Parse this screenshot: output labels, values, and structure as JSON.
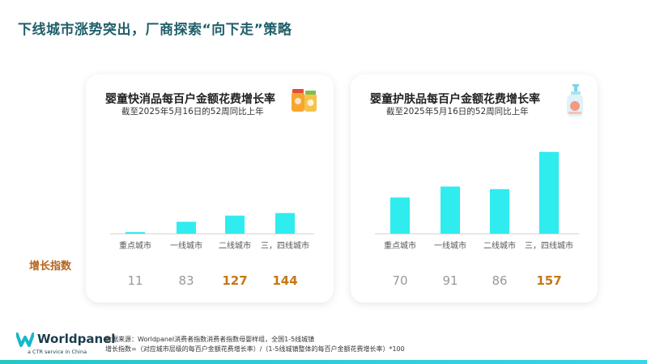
{
  "page": {
    "title": "下线城市涨势突出，厂商探索“向下走”策略",
    "index_label": "增长指数",
    "logo_text": "Worldpanel",
    "logo_sub": "a CTR service in China",
    "source_line1": "数据来源：Worldpanel消费者指数消费者指数母婴样组，全国1-5线城镇",
    "source_line2": "增长指数=（对应城市层级的每百户金额花费增长率）/（1-5线城镇整体的每百户金额花费增长率）*100"
  },
  "colors": {
    "bar": "#2fecef",
    "title": "#1f5f6a",
    "index_normal": "#999999",
    "index_highlight": "#c47818"
  },
  "chart_data": [
    {
      "type": "bar",
      "title": "婴童快消品每百户金额花费增长率",
      "subtitle": "截至2025年5月16日的52周同比上年",
      "icon": "baby-food-jars-icon",
      "categories": [
        "重点城市",
        "一线城市",
        "二线城市",
        "三，四线城市"
      ],
      "values": [
        0.5,
        3.7,
        5.6,
        6.4
      ],
      "index_values": [
        "11",
        "83",
        "127",
        "144"
      ],
      "index_highlight": [
        false,
        false,
        true,
        true
      ],
      "ylim": [
        0,
        30
      ]
    },
    {
      "type": "bar",
      "title": "婴童护肤品每百户金额花费增长率",
      "subtitle": "截至2025年5月16日的52周同比上年",
      "icon": "lotion-bottle-icon",
      "categories": [
        "重点城市",
        "一线城市",
        "二线城市",
        "三，四线城市"
      ],
      "values": [
        11.2,
        14.6,
        13.8,
        25.3
      ],
      "index_values": [
        "70",
        "91",
        "86",
        "157"
      ],
      "index_highlight": [
        false,
        false,
        false,
        true
      ],
      "ylim": [
        0,
        30
      ]
    }
  ]
}
